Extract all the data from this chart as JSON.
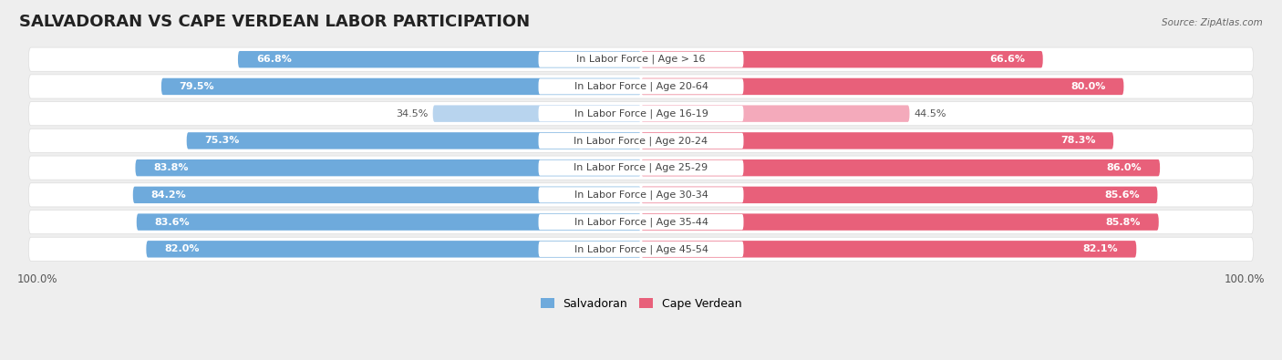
{
  "title": "SALVADORAN VS CAPE VERDEAN LABOR PARTICIPATION",
  "source": "Source: ZipAtlas.com",
  "categories": [
    "In Labor Force | Age > 16",
    "In Labor Force | Age 20-64",
    "In Labor Force | Age 16-19",
    "In Labor Force | Age 20-24",
    "In Labor Force | Age 25-29",
    "In Labor Force | Age 30-34",
    "In Labor Force | Age 35-44",
    "In Labor Force | Age 45-54"
  ],
  "salvadoran": [
    66.8,
    79.5,
    34.5,
    75.3,
    83.8,
    84.2,
    83.6,
    82.0
  ],
  "cape_verdean": [
    66.6,
    80.0,
    44.5,
    78.3,
    86.0,
    85.6,
    85.8,
    82.1
  ],
  "salvadoran_color": "#6eaadc",
  "salvadoran_color_light": "#b8d4ee",
  "cape_verdean_color": "#e8607a",
  "cape_verdean_color_light": "#f4aabb",
  "background_color": "#eeeeee",
  "row_bg_color": "#f8f8f8",
  "title_fontsize": 13,
  "label_fontsize": 8,
  "value_fontsize": 8,
  "max_value": 100.0,
  "bar_height": 0.62
}
